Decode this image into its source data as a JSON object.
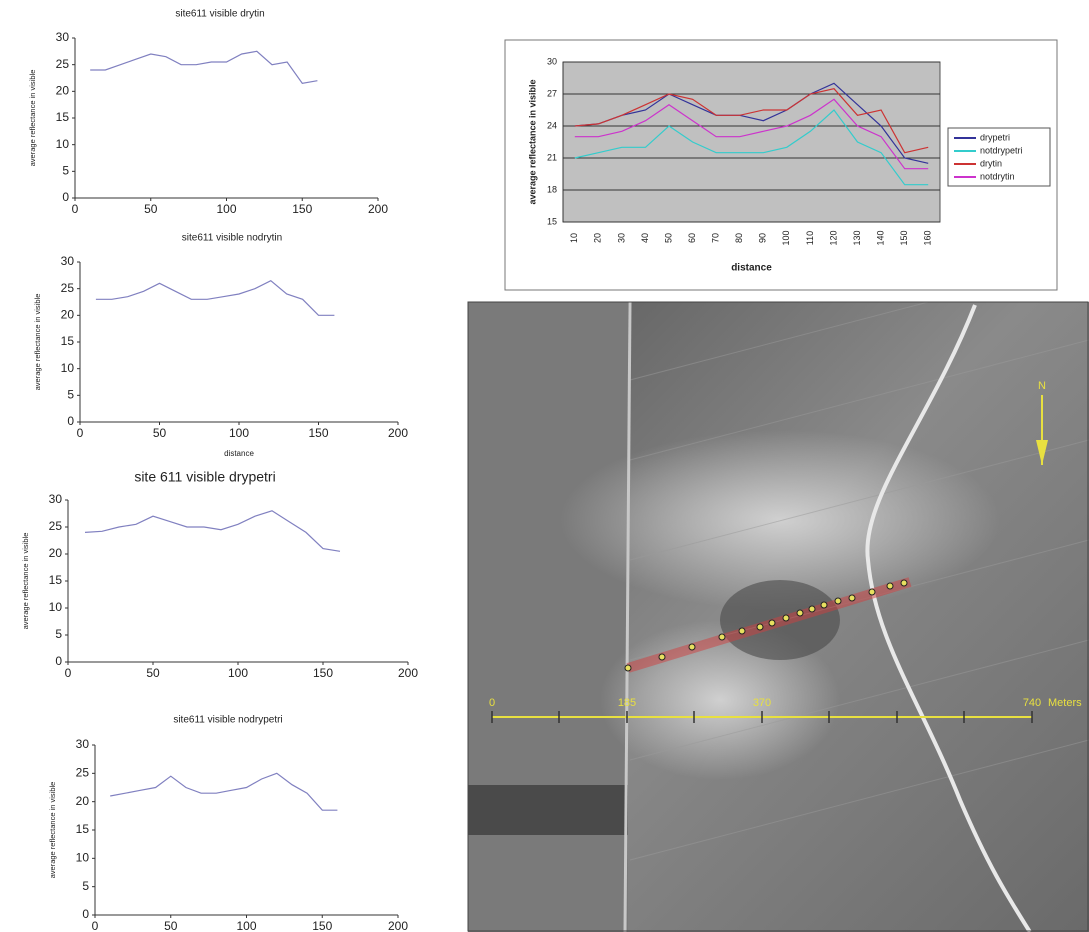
{
  "chart_data": [
    {
      "type": "line",
      "title": "site611 visible drytin",
      "y_label": "average reflectance in visible",
      "x": [
        10,
        20,
        30,
        40,
        50,
        60,
        70,
        80,
        90,
        100,
        110,
        120,
        130,
        140,
        150,
        160
      ],
      "values": [
        24,
        24,
        25,
        26,
        27,
        26.5,
        25,
        25,
        25.5,
        25.5,
        27,
        27.5,
        25,
        25.5,
        21.5,
        22
      ],
      "color": "#8080c0",
      "xlim": [
        0,
        200
      ],
      "xticks": [
        0,
        50,
        100,
        150,
        200
      ],
      "ylim": [
        0,
        30
      ],
      "yticks": [
        0,
        5,
        10,
        15,
        20,
        25,
        30
      ]
    },
    {
      "type": "line",
      "title": "site611 visible nodrytin",
      "x_label": "distance",
      "y_label": "average reflectance in visible",
      "x": [
        10,
        20,
        30,
        40,
        50,
        60,
        70,
        80,
        90,
        100,
        110,
        120,
        130,
        140,
        150,
        160
      ],
      "values": [
        23,
        23,
        23.5,
        24.5,
        26,
        24.5,
        23,
        23,
        23.5,
        24,
        25,
        26.5,
        24,
        23,
        20,
        20
      ],
      "color": "#8080c0",
      "xlim": [
        0,
        200
      ],
      "xticks": [
        0,
        50,
        100,
        150,
        200
      ],
      "ylim": [
        0,
        30
      ],
      "yticks": [
        0,
        5,
        10,
        15,
        20,
        25,
        30
      ]
    },
    {
      "type": "line",
      "title": "site 611 visible drypetri",
      "y_label": "average reflectance in visible",
      "x": [
        10,
        20,
        30,
        40,
        50,
        60,
        70,
        80,
        90,
        100,
        110,
        120,
        130,
        140,
        150,
        160
      ],
      "values": [
        24,
        24.2,
        25,
        25.5,
        27,
        26,
        25,
        25,
        24.5,
        25.5,
        27,
        28,
        26,
        24,
        21,
        20.5
      ],
      "color": "#8080c0",
      "xlim": [
        0,
        200
      ],
      "xticks": [
        0,
        50,
        100,
        150,
        200
      ],
      "ylim": [
        0,
        30
      ],
      "yticks": [
        0,
        5,
        10,
        15,
        20,
        25,
        30
      ]
    },
    {
      "type": "line",
      "title": "site611 visible nodrypetri",
      "x_label": "distance",
      "y_label": "average reflectance in visible",
      "x": [
        10,
        20,
        30,
        40,
        50,
        60,
        70,
        80,
        90,
        100,
        110,
        120,
        130,
        140,
        150,
        160
      ],
      "values": [
        21,
        21.5,
        22,
        22.5,
        24.5,
        22.5,
        21.5,
        21.5,
        22,
        22.5,
        24,
        25,
        23,
        21.5,
        18.5,
        18.5
      ],
      "color": "#8080c0",
      "xlim": [
        0,
        200
      ],
      "xticks": [
        0,
        50,
        100,
        150,
        200
      ],
      "ylim": [
        0,
        30
      ],
      "yticks": [
        0,
        5,
        10,
        15,
        20,
        25,
        30
      ]
    },
    {
      "type": "line",
      "x_label": "distance",
      "y_label": "average reflectance in visible",
      "categories": [
        "10",
        "20",
        "30",
        "40",
        "50",
        "60",
        "70",
        "80",
        "90",
        "100",
        "110",
        "120",
        "130",
        "140",
        "150",
        "160"
      ],
      "series": [
        {
          "name": "drypetri",
          "color": "#333399",
          "values": [
            24,
            24.2,
            25,
            25.5,
            27,
            26,
            25,
            25,
            24.5,
            25.5,
            27,
            28,
            26,
            24,
            21,
            20.5
          ]
        },
        {
          "name": "notdrypetri",
          "color": "#33cccc",
          "values": [
            21,
            21.5,
            22,
            22,
            24,
            22.5,
            21.5,
            21.5,
            21.5,
            22,
            23.5,
            25.5,
            22.5,
            21.5,
            18.5,
            18.5
          ]
        },
        {
          "name": "drytin",
          "color": "#cc3333",
          "values": [
            24,
            24.2,
            25,
            26,
            27,
            26.5,
            25,
            25,
            25.5,
            25.5,
            27,
            27.5,
            25,
            25.5,
            21.5,
            22
          ]
        },
        {
          "name": "notdrytin",
          "color": "#cc33cc",
          "values": [
            23,
            23,
            23.5,
            24.5,
            26,
            24.5,
            23,
            23,
            23.5,
            24,
            25,
            26.5,
            24,
            23,
            20,
            20
          ]
        }
      ],
      "ylim": [
        15,
        30
      ],
      "yticks": [
        15,
        18,
        21,
        24,
        27,
        30
      ],
      "grid": true,
      "legend": "right"
    }
  ],
  "map": {
    "scale_labels": [
      "0",
      "185",
      "370",
      "740"
    ],
    "scale_unit": "Meters",
    "north": "N"
  }
}
